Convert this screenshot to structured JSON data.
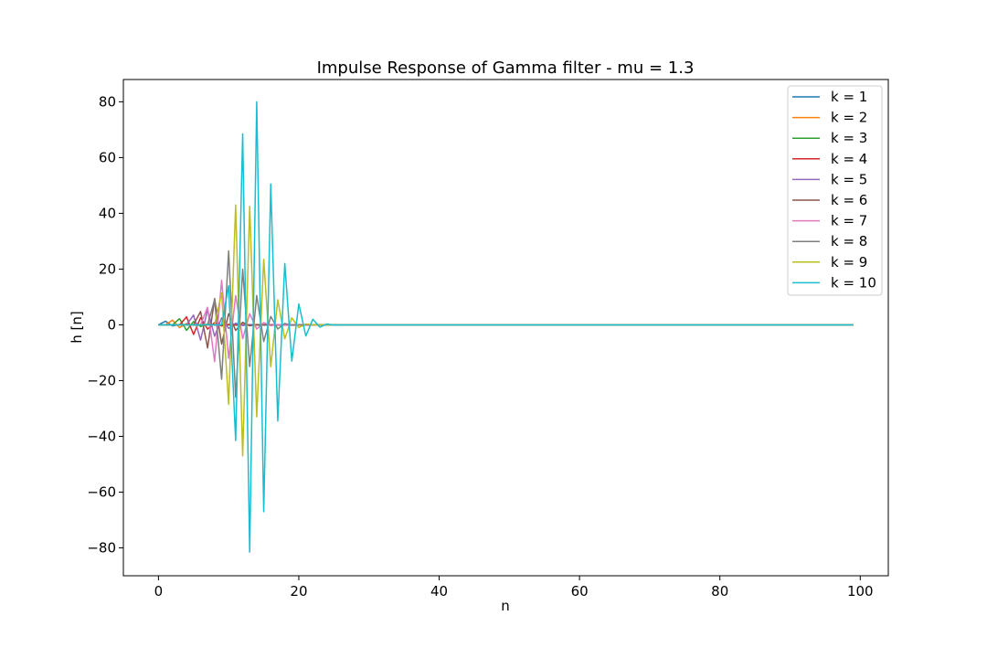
{
  "chart_data": {
    "type": "line",
    "title": "Impulse Response of Gamma filter - mu = 1.3",
    "xlabel": "n",
    "ylabel": "h [n]",
    "xlim": [
      -5,
      104
    ],
    "ylim": [
      -90,
      88
    ],
    "xticks": [
      0,
      20,
      40,
      60,
      80,
      100
    ],
    "yticks": [
      -80,
      -60,
      -40,
      -20,
      0,
      20,
      40,
      60,
      80
    ],
    "x_start": 0,
    "x_end": 99,
    "grid": false,
    "legend_position": "top-right",
    "series": [
      {
        "name": "k = 1",
        "color": "#1f77b4",
        "values": [
          0,
          1.3,
          -0.39,
          0.117,
          -0.035,
          0.011,
          -0.003,
          0.001,
          0
        ]
      },
      {
        "name": "k = 2",
        "color": "#ff7f0e",
        "values": [
          0,
          0,
          1.69,
          -1.01,
          0.46,
          -0.18,
          0.07,
          -0.02,
          0.01,
          0
        ]
      },
      {
        "name": "k = 3",
        "color": "#2ca02c",
        "values": [
          0,
          0,
          0,
          2.2,
          -1.98,
          1.19,
          -0.59,
          0.27,
          -0.11,
          0.04,
          -0.01,
          0
        ]
      },
      {
        "name": "k = 4",
        "color": "#d62728",
        "values": [
          0,
          0,
          0,
          0,
          2.86,
          -3.43,
          2.57,
          -1.54,
          0.81,
          -0.39,
          0.17,
          -0.07,
          0.03,
          0
        ]
      },
      {
        "name": "k = 5",
        "color": "#9467bd",
        "values": [
          0,
          0,
          0,
          0,
          0,
          3.5,
          -5.5,
          5.5,
          -4.1,
          2.5,
          -1.3,
          0.6,
          -0.25,
          0.1,
          0
        ]
      },
      {
        "name": "k = 6",
        "color": "#8c564b",
        "values": [
          0,
          0,
          0,
          0,
          0,
          0,
          4.8,
          -8.3,
          9.4,
          -6.9,
          4.0,
          -2.0,
          0.9,
          -0.35,
          0.1,
          0
        ]
      },
      {
        "name": "k = 7",
        "color": "#e377c2",
        "values": [
          0,
          0,
          0,
          0,
          0,
          0,
          0,
          6.3,
          -13.2,
          16.0,
          -12.0,
          10.5,
          -5.0,
          4.0,
          -1.5,
          0.8,
          -0.3,
          0.1,
          0
        ]
      },
      {
        "name": "k = 8",
        "color": "#7f7f7f",
        "values": [
          0,
          0,
          0,
          0,
          0,
          0,
          0,
          0,
          9.0,
          -19.5,
          26.5,
          -26.0,
          20.0,
          -15.0,
          10.5,
          -6.0,
          3.0,
          -1.5,
          0.5,
          -0.2,
          0
        ]
      },
      {
        "name": "k = 9",
        "color": "#bcbd22",
        "values": [
          0,
          0,
          0,
          0,
          0,
          0,
          0,
          0,
          0,
          11.5,
          -28.5,
          43.0,
          -47.0,
          42.5,
          -33.0,
          23.5,
          -15.0,
          9.0,
          -5.0,
          2.5,
          -1.0,
          0.3,
          0
        ]
      },
      {
        "name": "k = 10",
        "color": "#17becf",
        "values": [
          0,
          0,
          0,
          0,
          0,
          0,
          0,
          0,
          0,
          0,
          14.0,
          -41.5,
          68.5,
          -81.5,
          80.0,
          -67.0,
          50.5,
          -34.5,
          22.0,
          -13.0,
          7.5,
          -4.0,
          2.0,
          -0.8,
          0.3,
          -0.1,
          0
        ]
      }
    ]
  }
}
